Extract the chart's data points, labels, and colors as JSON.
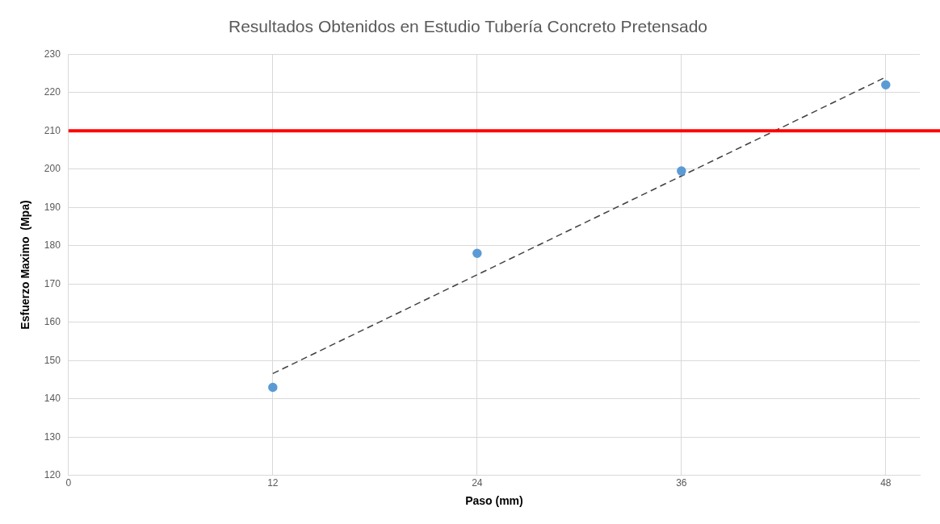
{
  "chart_data": {
    "type": "scatter",
    "title": "Resultados Obtenidos en Estudio Tubería Concreto Pretensado",
    "xlabel": "Paso (mm)",
    "ylabel": "Esfuerzo Maximo  (Mpa)",
    "x": [
      12,
      24,
      36,
      48
    ],
    "series": [
      {
        "type": "scatter",
        "color": "#5b9bd5",
        "values": [
          143,
          178,
          199.5,
          222
        ],
        "marker": "circle"
      },
      {
        "type": "line",
        "x": [
          12,
          48
        ],
        "values": [
          146.6,
          224
        ],
        "color": "#404040",
        "line_style": "dashed",
        "marker": "none"
      }
    ],
    "xlim": [
      0,
      50
    ],
    "xticks": [
      0,
      12,
      24,
      36,
      48
    ],
    "ylim": [
      120,
      230
    ],
    "yticks": [
      120,
      130,
      140,
      150,
      160,
      170,
      180,
      190,
      200,
      210,
      220,
      230
    ],
    "ref_lines": [
      {
        "axis": "y",
        "value": 210,
        "color": "#ff0000"
      }
    ],
    "grid": true,
    "legend": false
  }
}
